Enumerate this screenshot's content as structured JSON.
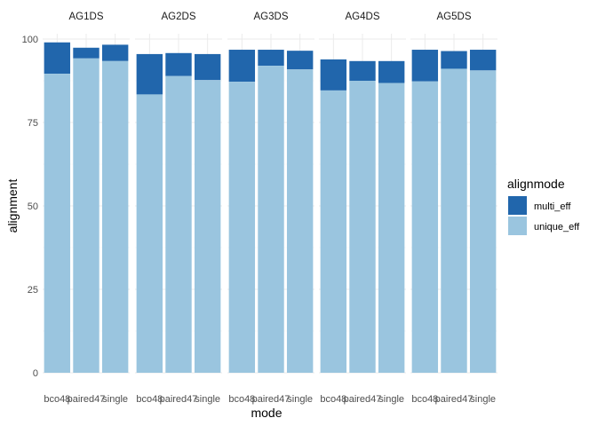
{
  "chart_data": {
    "type": "bar",
    "stacked": true,
    "facet_by": "dataset",
    "xlabel": "mode",
    "ylabel": "alignment",
    "ylim": [
      0,
      100
    ],
    "yticks": [
      0,
      25,
      50,
      75,
      100
    ],
    "grid": true,
    "legend_title": "alignmode",
    "legend_position": "right",
    "categories": [
      "bco48",
      "paired47",
      "single"
    ],
    "x_tick_labels": [
      "bco48",
      "paired47",
      "single"
    ],
    "series": [
      {
        "name": "multi_eff",
        "color": "#2166ac"
      },
      {
        "name": "unique_eff",
        "color": "#9ac5df"
      }
    ],
    "panels": [
      {
        "label": "AG1DS",
        "unique_eff": [
          89.6,
          94.2,
          93.4
        ],
        "total": [
          99.0,
          97.4,
          98.3
        ]
      },
      {
        "label": "AG2DS",
        "unique_eff": [
          83.4,
          88.9,
          87.7
        ],
        "total": [
          95.5,
          95.8,
          95.5
        ]
      },
      {
        "label": "AG3DS",
        "unique_eff": [
          87.2,
          92.0,
          90.9
        ],
        "total": [
          96.8,
          96.8,
          96.5
        ]
      },
      {
        "label": "AG4DS",
        "unique_eff": [
          84.6,
          87.5,
          86.8
        ],
        "total": [
          93.9,
          93.4,
          93.4
        ]
      },
      {
        "label": "AG5DS",
        "unique_eff": [
          87.3,
          91.1,
          90.6
        ],
        "total": [
          96.8,
          96.4,
          96.8
        ]
      }
    ]
  }
}
